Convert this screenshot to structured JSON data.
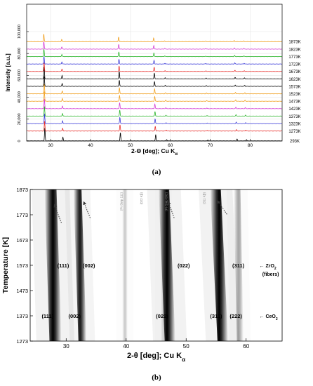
{
  "panels": {
    "a": "(a)",
    "b": "(b)"
  },
  "chart_data": [
    {
      "type": "line",
      "xlabel": "2-Θ [deg]; Cu K",
      "xlabel_subscript": "α",
      "ylabel": "Intensity [a.u.]",
      "xlim": [
        24,
        88
      ],
      "ylim": [
        0,
        125000
      ],
      "x_ticks": [
        30,
        40,
        50,
        60,
        70,
        80
      ],
      "y_ticks": [
        0,
        20000,
        40000,
        60000,
        80000,
        100000
      ],
      "y_tick_labels": [
        "0",
        "20,000",
        "40,000",
        "60,000",
        "80,000",
        "100,000"
      ],
      "grid": true,
      "peaks_deg": [
        28.55,
        33.08,
        47.48,
        56.33,
        59.08,
        69.4,
        76.7,
        79.07
      ],
      "peak_heights": [
        1.0,
        0.28,
        0.62,
        0.48,
        0.1,
        0.07,
        0.14,
        0.1
      ],
      "series": [
        {
          "name": "293K",
          "color": "#000000",
          "offset": 0,
          "amp": 12000,
          "shift_deg": 0.0
        },
        {
          "name": "1273K",
          "color": "#e8302c",
          "offset": 9000,
          "amp": 9000,
          "shift_deg": 0.1
        },
        {
          "name": "1323K",
          "color": "#3a3ad8",
          "offset": 15800,
          "amp": 9000,
          "shift_deg": 0.13
        },
        {
          "name": "1373K",
          "color": "#2bb52b",
          "offset": 22600,
          "amp": 9000,
          "shift_deg": 0.16
        },
        {
          "name": "1423K",
          "color": "#d43bd4",
          "offset": 29400,
          "amp": 9000,
          "shift_deg": 0.19
        },
        {
          "name": "1473K",
          "color": "#f0a020",
          "offset": 36200,
          "amp": 9000,
          "shift_deg": 0.22
        },
        {
          "name": "1523K",
          "color": "#f0a020",
          "offset": 43000,
          "amp": 9000,
          "shift_deg": 0.25
        },
        {
          "name": "1573K",
          "color": "#000000",
          "offset": 49800,
          "amp": 9000,
          "shift_deg": 0.28
        },
        {
          "name": "1623K",
          "color": "#000000",
          "offset": 56600,
          "amp": 11000,
          "shift_deg": 0.31
        },
        {
          "name": "1673K",
          "color": "#e8302c",
          "offset": 63400,
          "amp": 8000,
          "shift_deg": 0.34
        },
        {
          "name": "1723K",
          "color": "#3a3ad8",
          "offset": 70200,
          "amp": 7000,
          "shift_deg": 0.37
        },
        {
          "name": "1773K",
          "color": "#2bb52b",
          "offset": 77000,
          "amp": 7000,
          "shift_deg": 0.4
        },
        {
          "name": "1823K",
          "color": "#d43bd4",
          "offset": 83800,
          "amp": 7000,
          "shift_deg": 0.43
        },
        {
          "name": "1873K",
          "color": "#f0a020",
          "offset": 90600,
          "amp": 7000,
          "shift_deg": 0.46
        }
      ]
    },
    {
      "type": "heatmap",
      "xlabel": "2-θ [deg]; Cu K",
      "xlabel_subscript": "α",
      "ylabel": "Temperature [K]",
      "xlim": [
        24,
        66
      ],
      "ylim": [
        1273,
        1873
      ],
      "x_ticks": [
        30,
        40,
        50,
        60
      ],
      "y_ticks": [
        1273,
        1373,
        1473,
        1573,
        1673,
        1773,
        1873
      ],
      "bands": [
        {
          "x_low": 28.2,
          "x_high": 27.4,
          "width": 0.9,
          "darkness": 1.0
        },
        {
          "x_low": 32.7,
          "x_high": 31.9,
          "width": 0.6,
          "darkness": 0.9
        },
        {
          "x_low": 47.3,
          "x_high": 46.3,
          "width": 0.8,
          "darkness": 1.0
        },
        {
          "x_low": 56.1,
          "x_high": 54.9,
          "width": 0.8,
          "darkness": 1.0
        },
        {
          "x_low": 59.0,
          "x_high": 58.5,
          "width": 0.5,
          "darkness": 0.35
        },
        {
          "x_low": 39.8,
          "x_high": 39.8,
          "width": 0.4,
          "darkness": 0.2
        },
        {
          "x_low": 46.2,
          "x_high": 46.2,
          "width": 0.4,
          "darkness": 0.15
        }
      ],
      "rotated_labels": [
        {
          "text": "(Pt-Strip 111)",
          "x": 39.4,
          "color": "#888888"
        },
        {
          "text": "(022 Kβ)",
          "x": 42.7,
          "color": "#888888"
        },
        {
          "text": "(Pt-Strip 002)",
          "x": 46.9,
          "color": "#888888"
        },
        {
          "text": "(311 Kβ)",
          "x": 53.2,
          "color": "#888888"
        }
      ],
      "arrows": [
        {
          "x1": 29.2,
          "y1": 1740,
          "x2": 28.1,
          "y2": 1810
        },
        {
          "x1": 34.0,
          "y1": 1760,
          "x2": 33.0,
          "y2": 1820
        },
        {
          "x1": 48.0,
          "y1": 1760,
          "x2": 47.1,
          "y2": 1820
        },
        {
          "x1": 56.8,
          "y1": 1775,
          "x2": 55.3,
          "y2": 1825
        }
      ],
      "annotations": [
        {
          "text": "(111)",
          "x": 29.5,
          "y": 1573
        },
        {
          "text": "(002)",
          "x": 33.8,
          "y": 1573
        },
        {
          "text": "(022)",
          "x": 49.6,
          "y": 1573
        },
        {
          "text": "(311)",
          "x": 58.7,
          "y": 1573
        },
        {
          "text": "(111)",
          "x": 26.9,
          "y": 1373
        },
        {
          "text": "(002)",
          "x": 31.4,
          "y": 1373
        },
        {
          "text": "(022)",
          "x": 46.0,
          "y": 1373
        },
        {
          "text": "(311)",
          "x": 55.0,
          "y": 1373
        },
        {
          "text": "(222)",
          "x": 58.3,
          "y": 1373
        }
      ],
      "side_labels": {
        "zro2_line1": "← ZrO",
        "zro2_sub": "2",
        "zro2_line2": "(fibers)",
        "ceo2": "← CeO",
        "ceo2_sub": "2"
      }
    }
  ]
}
